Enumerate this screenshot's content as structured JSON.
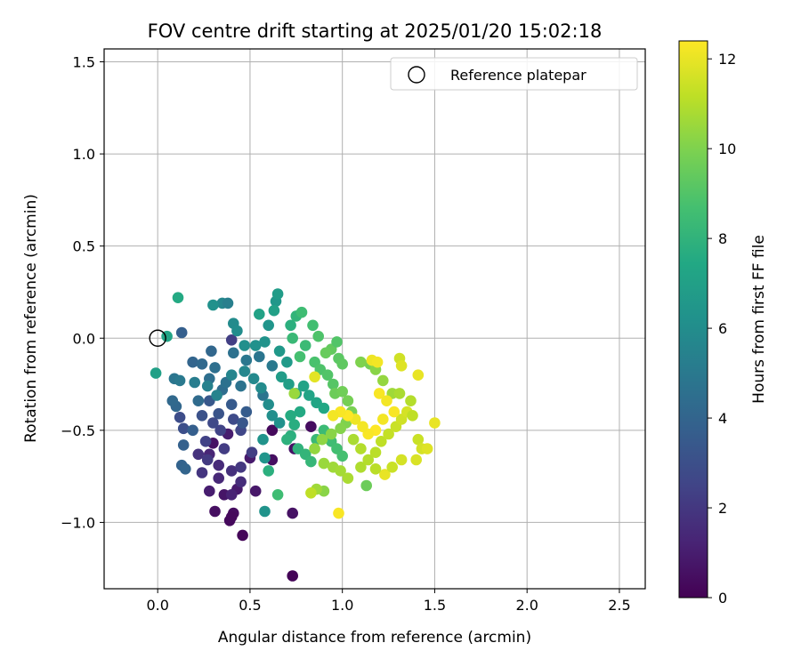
{
  "chart_data": {
    "type": "scatter",
    "title": "FOV centre drift starting at 2025/01/20 15:02:18",
    "xlabel": "Angular distance from reference (arcmin)",
    "ylabel": "Rotation from reference (arcmin)",
    "xlim": [
      -0.29,
      2.64
    ],
    "ylim": [
      -1.36,
      1.57
    ],
    "x_ticks": [
      0.0,
      0.5,
      1.0,
      1.5,
      2.0,
      2.5
    ],
    "x_tick_labels": [
      "0.0",
      "0.5",
      "1.0",
      "1.5",
      "2.0",
      "2.5"
    ],
    "y_ticks": [
      -1.0,
      -0.5,
      0.0,
      0.5,
      1.0,
      1.5
    ],
    "y_tick_labels": [
      "−1.0",
      "−0.5",
      "0.0",
      "0.5",
      "1.0",
      "1.5"
    ],
    "grid": true,
    "legend": {
      "placement": "top-right",
      "entries": [
        {
          "label": "Reference platepar",
          "marker": "open-circle"
        }
      ]
    },
    "reference_point": {
      "x": 0.0,
      "y": 0.0
    },
    "colorbar": {
      "label": "Hours from first FF file",
      "colormap": "viridis",
      "range": [
        0,
        12.4
      ],
      "ticks": [
        0,
        2,
        4,
        6,
        8,
        10,
        12
      ],
      "tick_labels": [
        "0",
        "2",
        "4",
        "6",
        "8",
        "10",
        "12"
      ]
    },
    "series": [
      {
        "color_by": "hours",
        "points": [
          [
            0.73,
            -1.29,
            0.1
          ],
          [
            0.46,
            -1.07,
            0.2
          ],
          [
            0.39,
            -0.99,
            0.3
          ],
          [
            0.41,
            -0.95,
            0.4
          ],
          [
            0.31,
            -0.94,
            0.5
          ],
          [
            0.4,
            -0.97,
            0.3
          ],
          [
            0.73,
            -0.95,
            0.6
          ],
          [
            0.36,
            -0.85,
            0.7
          ],
          [
            0.53,
            -0.83,
            0.8
          ],
          [
            0.43,
            -0.82,
            0.9
          ],
          [
            0.28,
            -0.83,
            1.0
          ],
          [
            0.4,
            -0.85,
            1.2
          ],
          [
            0.33,
            -0.76,
            1.4
          ],
          [
            0.45,
            -0.78,
            1.6
          ],
          [
            0.62,
            -0.66,
            0.5
          ],
          [
            0.74,
            -0.6,
            0.6
          ],
          [
            0.62,
            -0.5,
            0.3
          ],
          [
            0.83,
            -0.48,
            0.4
          ],
          [
            0.5,
            -0.65,
            0.9
          ],
          [
            0.3,
            -0.57,
            0.6
          ],
          [
            0.38,
            -0.52,
            1.0
          ],
          [
            0.28,
            -0.63,
            1.3
          ],
          [
            0.22,
            -0.63,
            1.8
          ],
          [
            0.24,
            -0.73,
            1.9
          ],
          [
            0.33,
            -0.69,
            1.5
          ],
          [
            0.4,
            -0.72,
            1.7
          ],
          [
            0.45,
            -0.7,
            2.0
          ],
          [
            0.27,
            -0.66,
            2.1
          ],
          [
            0.36,
            -0.6,
            2.2
          ],
          [
            0.51,
            -0.62,
            2.3
          ],
          [
            0.26,
            -0.56,
            2.4
          ],
          [
            0.34,
            -0.5,
            2.5
          ],
          [
            0.45,
            -0.5,
            2.6
          ],
          [
            0.3,
            -0.46,
            2.7
          ],
          [
            0.41,
            -0.44,
            2.8
          ],
          [
            0.12,
            -0.43,
            2.9
          ],
          [
            0.14,
            -0.49,
            3.0
          ],
          [
            0.24,
            -0.42,
            3.1
          ],
          [
            0.33,
            -0.41,
            3.2
          ],
          [
            0.46,
            -0.46,
            3.3
          ],
          [
            0.28,
            -0.34,
            3.4
          ],
          [
            0.4,
            -0.36,
            3.5
          ],
          [
            0.48,
            -0.4,
            3.6
          ],
          [
            0.19,
            -0.5,
            3.7
          ],
          [
            0.14,
            -0.58,
            3.8
          ],
          [
            0.13,
            -0.69,
            3.9
          ],
          [
            0.15,
            -0.71,
            4.0
          ],
          [
            0.1,
            -0.37,
            4.1
          ],
          [
            0.08,
            -0.34,
            4.2
          ],
          [
            0.22,
            -0.34,
            4.3
          ],
          [
            0.35,
            -0.28,
            4.4
          ],
          [
            0.28,
            -0.22,
            4.5
          ],
          [
            0.37,
            -0.24,
            4.6
          ],
          [
            0.45,
            -0.26,
            4.7
          ],
          [
            0.57,
            -0.31,
            4.8
          ],
          [
            0.48,
            -0.12,
            4.9
          ],
          [
            0.4,
            -0.01,
            2.3
          ],
          [
            0.13,
            0.03,
            3.7
          ],
          [
            0.19,
            -0.13,
            4.0
          ],
          [
            0.24,
            -0.14,
            4.2
          ],
          [
            0.31,
            -0.16,
            4.5
          ],
          [
            0.29,
            -0.07,
            4.1
          ],
          [
            0.41,
            -0.08,
            4.6
          ],
          [
            0.55,
            -0.1,
            4.8
          ],
          [
            0.62,
            -0.15,
            5.0
          ],
          [
            0.09,
            -0.22,
            4.8
          ],
          [
            0.12,
            -0.23,
            5.0
          ],
          [
            0.2,
            -0.24,
            5.2
          ],
          [
            0.27,
            -0.26,
            5.4
          ],
          [
            0.32,
            -0.31,
            5.5
          ],
          [
            0.4,
            -0.2,
            5.6
          ],
          [
            0.47,
            -0.18,
            5.7
          ],
          [
            0.52,
            -0.22,
            5.8
          ],
          [
            0.56,
            -0.27,
            5.9
          ],
          [
            0.6,
            -0.36,
            6.0
          ],
          [
            0.62,
            -0.42,
            6.1
          ],
          [
            0.66,
            -0.46,
            6.2
          ],
          [
            0.57,
            -0.55,
            6.3
          ],
          [
            0.58,
            -0.65,
            6.4
          ],
          [
            0.58,
            -0.94,
            6.3
          ],
          [
            0.35,
            0.19,
            5.7
          ],
          [
            0.38,
            0.19,
            5.3
          ],
          [
            0.3,
            0.18,
            6.2
          ],
          [
            0.41,
            0.08,
            5.9
          ],
          [
            0.43,
            0.04,
            6.0
          ],
          [
            0.47,
            -0.04,
            6.1
          ],
          [
            0.53,
            -0.04,
            6.2
          ],
          [
            0.58,
            -0.02,
            6.3
          ],
          [
            0.6,
            0.07,
            6.4
          ],
          [
            0.64,
            0.2,
            6.5
          ],
          [
            0.65,
            0.24,
            6.8
          ],
          [
            0.63,
            0.15,
            7.0
          ],
          [
            0.55,
            0.13,
            7.1
          ],
          [
            0.66,
            -0.07,
            6.6
          ],
          [
            0.7,
            -0.13,
            6.7
          ],
          [
            0.67,
            -0.21,
            6.8
          ],
          [
            0.71,
            -0.25,
            6.9
          ],
          [
            0.75,
            -0.3,
            7.0
          ],
          [
            0.79,
            -0.26,
            7.1
          ],
          [
            0.82,
            -0.31,
            7.2
          ],
          [
            0.86,
            -0.35,
            7.3
          ],
          [
            0.9,
            -0.38,
            7.4
          ],
          [
            0.77,
            -0.4,
            7.5
          ],
          [
            0.72,
            -0.42,
            7.6
          ],
          [
            0.74,
            -0.47,
            7.7
          ],
          [
            0.72,
            -0.53,
            7.8
          ],
          [
            0.7,
            -0.55,
            7.9
          ],
          [
            0.76,
            -0.6,
            8.0
          ],
          [
            0.8,
            -0.63,
            8.1
          ],
          [
            0.83,
            -0.67,
            8.2
          ],
          [
            0.86,
            -0.55,
            8.3
          ],
          [
            0.9,
            -0.5,
            8.4
          ],
          [
            0.94,
            -0.56,
            8.5
          ],
          [
            0.97,
            -0.6,
            8.6
          ],
          [
            1.0,
            -0.64,
            8.7
          ],
          [
            0.11,
            0.22,
            7.5
          ],
          [
            -0.01,
            -0.19,
            7.0
          ],
          [
            0.05,
            0.01,
            7.2
          ],
          [
            0.6,
            -0.72,
            7.8
          ],
          [
            0.65,
            -0.85,
            8.5
          ],
          [
            0.72,
            0.07,
            7.8
          ],
          [
            0.75,
            0.12,
            8.1
          ],
          [
            0.78,
            0.14,
            8.5
          ],
          [
            0.73,
            0.0,
            8.3
          ],
          [
            0.8,
            -0.04,
            8.4
          ],
          [
            0.84,
            0.07,
            8.6
          ],
          [
            0.77,
            -0.1,
            8.7
          ],
          [
            0.85,
            -0.13,
            8.8
          ],
          [
            0.88,
            -0.17,
            8.9
          ],
          [
            0.92,
            -0.2,
            9.0
          ],
          [
            0.95,
            -0.25,
            9.1
          ],
          [
            0.98,
            -0.11,
            9.2
          ],
          [
            1.0,
            -0.14,
            9.3
          ],
          [
            0.94,
            -0.06,
            9.4
          ],
          [
            0.97,
            -0.02,
            9.0
          ],
          [
            0.87,
            0.01,
            8.9
          ],
          [
            0.91,
            -0.08,
            9.5
          ],
          [
            0.96,
            -0.3,
            9.6
          ],
          [
            1.0,
            -0.29,
            9.7
          ],
          [
            1.03,
            -0.34,
            9.8
          ],
          [
            1.05,
            -0.4,
            9.9
          ],
          [
            1.02,
            -0.46,
            10.0
          ],
          [
            0.99,
            -0.49,
            10.1
          ],
          [
            0.94,
            -0.52,
            10.2
          ],
          [
            0.89,
            -0.55,
            10.3
          ],
          [
            0.85,
            -0.6,
            10.4
          ],
          [
            0.9,
            -0.68,
            10.5
          ],
          [
            0.95,
            -0.7,
            10.6
          ],
          [
            0.99,
            -0.72,
            10.7
          ],
          [
            1.03,
            -0.76,
            10.8
          ],
          [
            1.1,
            -0.7,
            10.9
          ],
          [
            1.14,
            -0.66,
            11.0
          ],
          [
            1.18,
            -0.62,
            11.1
          ],
          [
            1.21,
            -0.56,
            11.2
          ],
          [
            1.25,
            -0.52,
            11.3
          ],
          [
            1.29,
            -0.48,
            11.4
          ],
          [
            1.32,
            -0.44,
            11.5
          ],
          [
            1.35,
            -0.4,
            11.6
          ],
          [
            0.74,
            -0.3,
            10.5
          ],
          [
            0.9,
            -0.83,
            10.2
          ],
          [
            0.86,
            -0.82,
            10.6
          ],
          [
            0.83,
            -0.84,
            11.2
          ],
          [
            1.13,
            -0.8,
            9.6
          ],
          [
            1.15,
            -0.14,
            9.8
          ],
          [
            1.1,
            -0.13,
            10.0
          ],
          [
            1.18,
            -0.17,
            10.2
          ],
          [
            1.22,
            -0.23,
            10.4
          ],
          [
            1.27,
            -0.3,
            10.6
          ],
          [
            1.31,
            -0.3,
            10.8
          ],
          [
            1.37,
            -0.34,
            11.0
          ],
          [
            1.38,
            -0.42,
            11.2
          ],
          [
            1.41,
            -0.55,
            11.4
          ],
          [
            1.43,
            -0.6,
            11.6
          ],
          [
            1.46,
            -0.6,
            11.8
          ],
          [
            1.5,
            -0.46,
            12.0
          ],
          [
            1.31,
            -0.11,
            11.5
          ],
          [
            1.32,
            -0.15,
            11.8
          ],
          [
            1.41,
            -0.2,
            12.0
          ],
          [
            1.16,
            -0.12,
            12.1
          ],
          [
            1.19,
            -0.13,
            12.2
          ],
          [
            1.2,
            -0.3,
            12.3
          ],
          [
            1.24,
            -0.34,
            12.2
          ],
          [
            1.28,
            -0.4,
            12.3
          ],
          [
            1.22,
            -0.44,
            12.2
          ],
          [
            1.18,
            -0.5,
            12.4
          ],
          [
            1.14,
            -0.52,
            12.3
          ],
          [
            1.11,
            -0.48,
            12.2
          ],
          [
            1.07,
            -0.44,
            12.1
          ],
          [
            1.03,
            -0.42,
            12.4
          ],
          [
            0.99,
            -0.4,
            12.3
          ],
          [
            0.95,
            -0.42,
            12.2
          ],
          [
            0.98,
            -0.95,
            12.3
          ],
          [
            0.85,
            -0.21,
            11.9
          ],
          [
            1.23,
            -0.74,
            12.0
          ],
          [
            1.4,
            -0.66,
            11.7
          ],
          [
            1.32,
            -0.66,
            11.6
          ],
          [
            1.27,
            -0.7,
            11.4
          ],
          [
            1.18,
            -0.71,
            11.1
          ],
          [
            1.1,
            -0.6,
            11.0
          ],
          [
            1.06,
            -0.55,
            10.8
          ]
        ]
      }
    ]
  }
}
